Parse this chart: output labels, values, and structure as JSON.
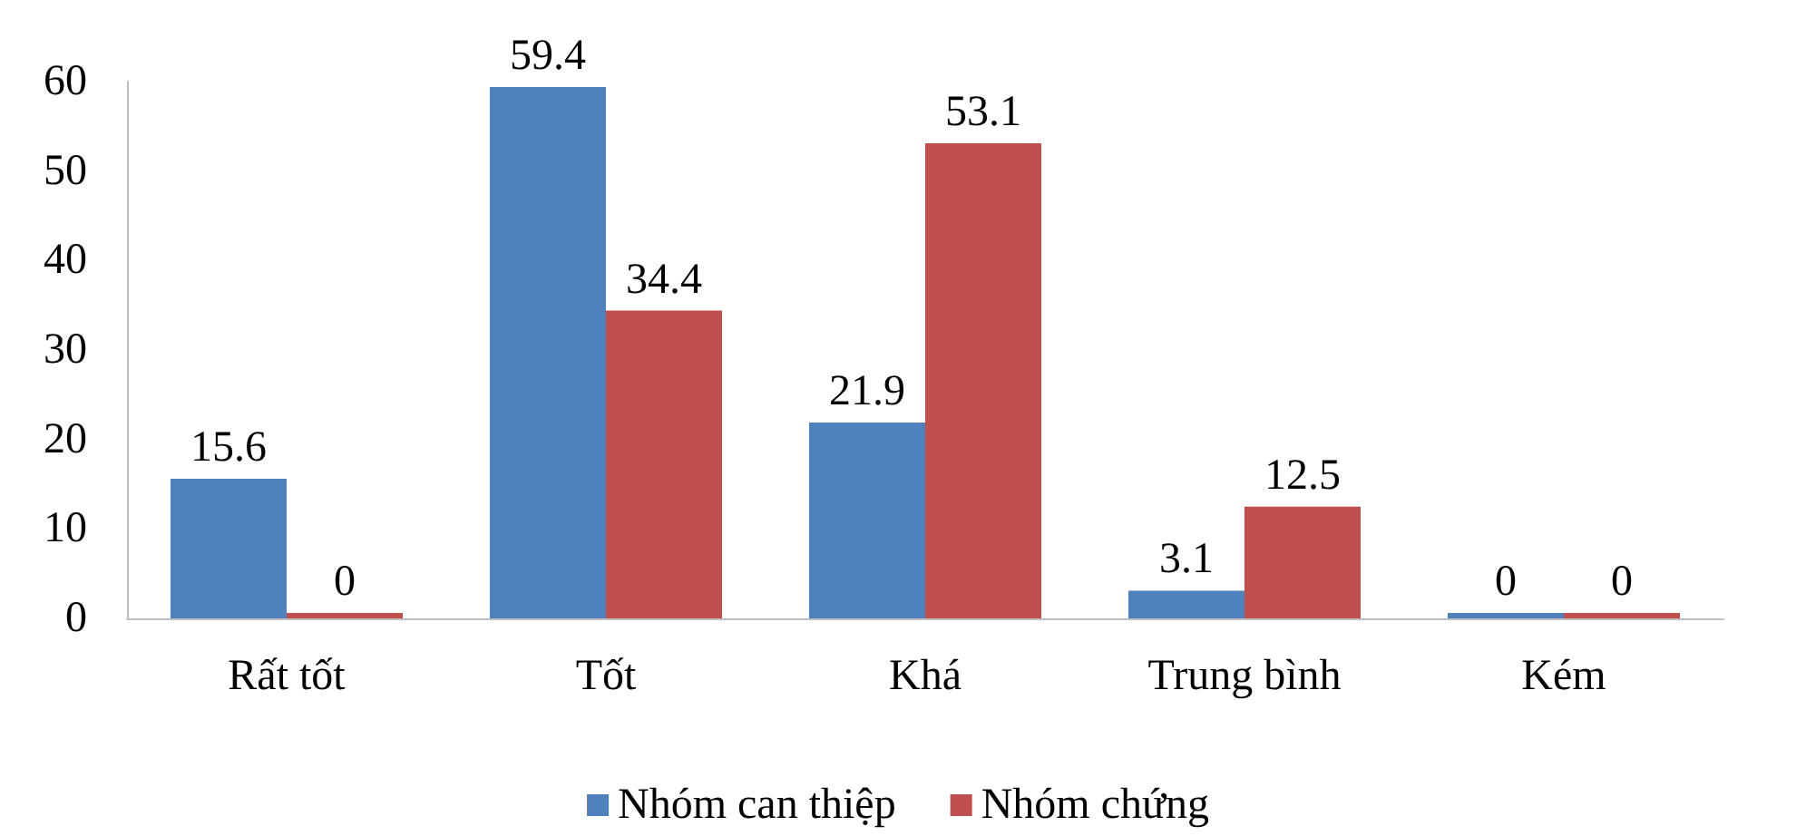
{
  "chart_data": {
    "type": "bar",
    "categories": [
      "Rất tốt",
      "Tốt",
      "Khá",
      "Trung bình",
      "Kém"
    ],
    "series": [
      {
        "name": "Nhóm can thiệp",
        "color": "#4f81bd",
        "values": [
          15.6,
          59.4,
          21.9,
          3.1,
          0
        ]
      },
      {
        "name": "Nhóm chứng",
        "color": "#c0504d",
        "values": [
          0,
          34.4,
          53.1,
          12.5,
          0
        ]
      }
    ],
    "ylim": [
      0,
      60
    ],
    "yticks": [
      0,
      10,
      20,
      30,
      40,
      50,
      60
    ],
    "grid": false,
    "legend": "bottom",
    "data_labels": true
  }
}
